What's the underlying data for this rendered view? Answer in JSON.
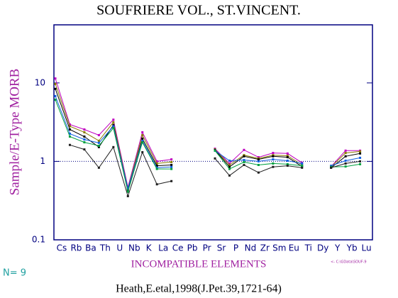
{
  "chart_data": {
    "type": "line",
    "title": "SOUFRIERE VOL., ST.VINCENT.",
    "y_label": "Sample/E-Type MORB",
    "x_label": "INCOMPATIBLE ELEMENTS",
    "sample_count": "N= 9",
    "source": "Heath,E.etal,1998(J.Pet.39,1721-64)",
    "file_note": "<- C:\\GData\\SOUF-9",
    "log_scale": true,
    "reference_line": 1,
    "categories": [
      "Cs",
      "Rb",
      "Ba",
      "Th",
      "U",
      "Nb",
      "K",
      "La",
      "Ce",
      "Pb",
      "Pr",
      "Sr",
      "P",
      "Nd",
      "Zr",
      "Sm",
      "Eu",
      "Ti",
      "Dy",
      "Y",
      "Yb",
      "Lu"
    ],
    "ylim": [
      0.1,
      55
    ],
    "yticks": [
      0.1,
      1,
      10
    ],
    "series": [
      {
        "color": "#c000c0",
        "values": [
          11.4,
          2.95,
          2.55,
          2.16,
          3.4,
          0.47,
          2.35,
          1.0,
          1.06,
          null,
          null,
          1.45,
          0.94,
          1.4,
          1.13,
          1.28,
          1.26,
          0.96,
          null,
          0.86,
          1.37,
          1.37
        ]
      },
      {
        "color": "#8a7a00",
        "values": [
          9.7,
          2.8,
          2.35,
          1.83,
          3.15,
          0.45,
          2.16,
          0.94,
          0.98,
          null,
          null,
          1.42,
          0.9,
          1.2,
          1.09,
          1.2,
          1.18,
          0.9,
          null,
          0.85,
          1.28,
          1.34
        ]
      },
      {
        "color": "#000000",
        "values": [
          8.4,
          2.55,
          2.07,
          1.52,
          2.9,
          0.43,
          1.95,
          0.88,
          0.9,
          null,
          null,
          1.4,
          0.85,
          1.16,
          1.06,
          1.16,
          1.13,
          0.86,
          null,
          0.83,
          1.16,
          1.26
        ]
      },
      {
        "color": "#1060e0",
        "values": [
          6.8,
          2.25,
          1.9,
          1.72,
          2.8,
          0.45,
          1.83,
          0.83,
          0.85,
          null,
          null,
          1.37,
          1.02,
          1.04,
          1.0,
          1.06,
          1.02,
          0.94,
          null,
          0.88,
          1.02,
          1.11
        ]
      },
      {
        "color": "#00a040",
        "values": [
          6.1,
          2.07,
          1.75,
          1.58,
          2.66,
          0.41,
          1.75,
          0.8,
          0.8,
          null,
          null,
          1.37,
          0.8,
          0.98,
          0.9,
          0.94,
          0.92,
          0.88,
          null,
          0.85,
          0.86,
          0.92
        ]
      },
      {
        "color": "#202020",
        "values": [
          null,
          1.62,
          1.42,
          0.83,
          1.52,
          0.36,
          1.31,
          0.51,
          0.56,
          null,
          null,
          1.09,
          0.66,
          0.9,
          0.72,
          0.85,
          0.88,
          0.83,
          null,
          0.83,
          0.94,
          1.0
        ]
      }
    ]
  }
}
